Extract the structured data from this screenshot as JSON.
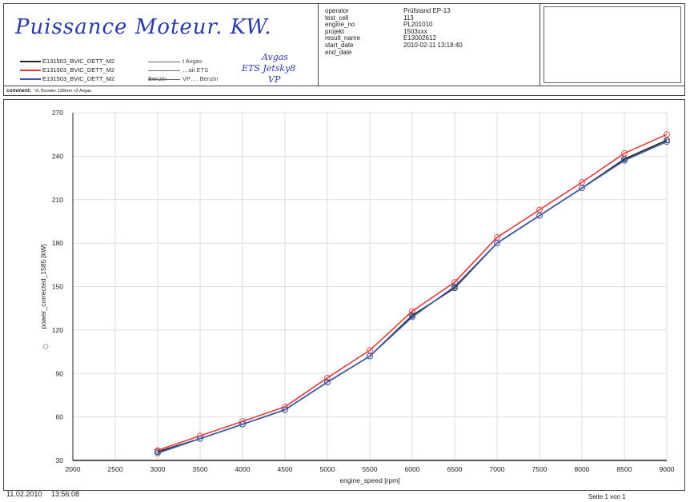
{
  "header": {
    "handwritten_title": "Puissance Moteur. KW.",
    "legend": [
      {
        "name": "E131503_BVIC_DETT_M2",
        "color": "#222222",
        "extra": "t Avgas",
        "annotation": "Avgas"
      },
      {
        "name": "E131503_BVIC_DETT_M2",
        "color": "#e23a3a",
        "extra": "…ait ETS Benzin",
        "annotation": "ETS Jetsky8"
      },
      {
        "name": "E131503_BVIC_DETT_M2",
        "color": "#3a5aa8",
        "extra": "VP…. Benzin",
        "annotation": "VP"
      }
    ],
    "meta_keys": [
      "operator",
      "test_cell",
      "engine_no",
      "projekt",
      "result_name",
      "start_date",
      "end_date"
    ],
    "meta_values": [
      "Prüfstand EP-13",
      "113",
      "PL201010",
      "1503xxx",
      "E13002612",
      "2010-02-11 13:18:40",
      ""
    ]
  },
  "comment": {
    "label": "comment:",
    "text": "VL Booster 138mm +2 Avgas"
  },
  "chart_data": {
    "type": "line",
    "xlabel": "engine_speed [rpm]",
    "ylabel": "power_corrected_1585 [kW]",
    "xlim": [
      2000,
      9000
    ],
    "ylim": [
      30,
      270
    ],
    "xticks": [
      2000,
      2500,
      3000,
      3500,
      4000,
      4500,
      5000,
      5500,
      6000,
      6500,
      7000,
      7500,
      8000,
      8500,
      9000
    ],
    "yticks": [
      30,
      60,
      90,
      120,
      150,
      180,
      210,
      240,
      270
    ],
    "grid": true,
    "x": [
      3000,
      3500,
      4000,
      4500,
      5000,
      5500,
      6000,
      6500,
      7000,
      7500,
      8000,
      8500,
      9000
    ],
    "series": [
      {
        "color": "#222222",
        "values": [
          36,
          45,
          55,
          65,
          84,
          102,
          130,
          149,
          180,
          199,
          218,
          238,
          251
        ]
      },
      {
        "color": "#e23a3a",
        "values": [
          37,
          47,
          57,
          67,
          87,
          106,
          133,
          153,
          184,
          203,
          222,
          242,
          255
        ]
      },
      {
        "color": "#3a5aa8",
        "values": [
          35,
          45,
          55,
          65,
          84,
          102,
          129,
          150,
          180,
          199,
          218,
          237,
          250
        ]
      }
    ]
  },
  "footer": {
    "date": "11.02.2010",
    "time": "13:56:08",
    "page": "Seite 1 von 1"
  }
}
